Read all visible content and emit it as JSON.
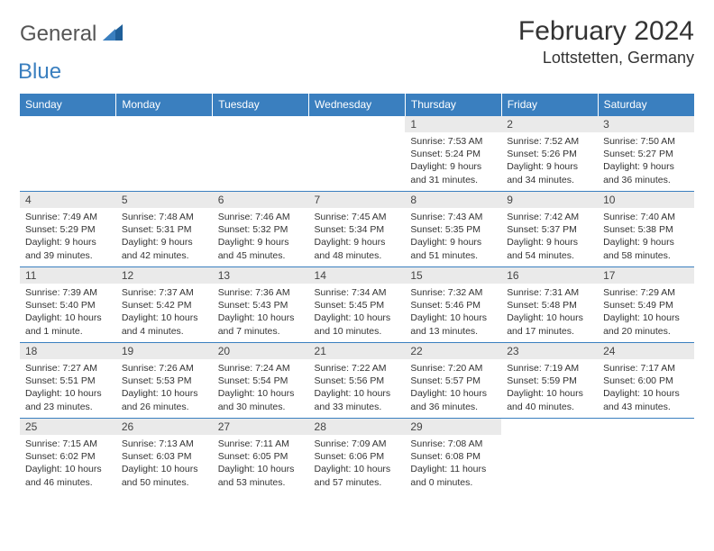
{
  "logo": {
    "text1": "General",
    "text2": "Blue"
  },
  "title": "February 2024",
  "location": "Lottstetten, Germany",
  "colors": {
    "header_bg": "#3a7fbf",
    "header_text": "#ffffff",
    "daynum_bg": "#eaeaea",
    "cell_border": "#3a7fbf",
    "body_text": "#333333",
    "page_bg": "#ffffff"
  },
  "weekdays": [
    "Sunday",
    "Monday",
    "Tuesday",
    "Wednesday",
    "Thursday",
    "Friday",
    "Saturday"
  ],
  "weeks": [
    [
      null,
      null,
      null,
      null,
      {
        "n": "1",
        "sr": "Sunrise: 7:53 AM",
        "ss": "Sunset: 5:24 PM",
        "dl": "Daylight: 9 hours and 31 minutes."
      },
      {
        "n": "2",
        "sr": "Sunrise: 7:52 AM",
        "ss": "Sunset: 5:26 PM",
        "dl": "Daylight: 9 hours and 34 minutes."
      },
      {
        "n": "3",
        "sr": "Sunrise: 7:50 AM",
        "ss": "Sunset: 5:27 PM",
        "dl": "Daylight: 9 hours and 36 minutes."
      }
    ],
    [
      {
        "n": "4",
        "sr": "Sunrise: 7:49 AM",
        "ss": "Sunset: 5:29 PM",
        "dl": "Daylight: 9 hours and 39 minutes."
      },
      {
        "n": "5",
        "sr": "Sunrise: 7:48 AM",
        "ss": "Sunset: 5:31 PM",
        "dl": "Daylight: 9 hours and 42 minutes."
      },
      {
        "n": "6",
        "sr": "Sunrise: 7:46 AM",
        "ss": "Sunset: 5:32 PM",
        "dl": "Daylight: 9 hours and 45 minutes."
      },
      {
        "n": "7",
        "sr": "Sunrise: 7:45 AM",
        "ss": "Sunset: 5:34 PM",
        "dl": "Daylight: 9 hours and 48 minutes."
      },
      {
        "n": "8",
        "sr": "Sunrise: 7:43 AM",
        "ss": "Sunset: 5:35 PM",
        "dl": "Daylight: 9 hours and 51 minutes."
      },
      {
        "n": "9",
        "sr": "Sunrise: 7:42 AM",
        "ss": "Sunset: 5:37 PM",
        "dl": "Daylight: 9 hours and 54 minutes."
      },
      {
        "n": "10",
        "sr": "Sunrise: 7:40 AM",
        "ss": "Sunset: 5:38 PM",
        "dl": "Daylight: 9 hours and 58 minutes."
      }
    ],
    [
      {
        "n": "11",
        "sr": "Sunrise: 7:39 AM",
        "ss": "Sunset: 5:40 PM",
        "dl": "Daylight: 10 hours and 1 minute."
      },
      {
        "n": "12",
        "sr": "Sunrise: 7:37 AM",
        "ss": "Sunset: 5:42 PM",
        "dl": "Daylight: 10 hours and 4 minutes."
      },
      {
        "n": "13",
        "sr": "Sunrise: 7:36 AM",
        "ss": "Sunset: 5:43 PM",
        "dl": "Daylight: 10 hours and 7 minutes."
      },
      {
        "n": "14",
        "sr": "Sunrise: 7:34 AM",
        "ss": "Sunset: 5:45 PM",
        "dl": "Daylight: 10 hours and 10 minutes."
      },
      {
        "n": "15",
        "sr": "Sunrise: 7:32 AM",
        "ss": "Sunset: 5:46 PM",
        "dl": "Daylight: 10 hours and 13 minutes."
      },
      {
        "n": "16",
        "sr": "Sunrise: 7:31 AM",
        "ss": "Sunset: 5:48 PM",
        "dl": "Daylight: 10 hours and 17 minutes."
      },
      {
        "n": "17",
        "sr": "Sunrise: 7:29 AM",
        "ss": "Sunset: 5:49 PM",
        "dl": "Daylight: 10 hours and 20 minutes."
      }
    ],
    [
      {
        "n": "18",
        "sr": "Sunrise: 7:27 AM",
        "ss": "Sunset: 5:51 PM",
        "dl": "Daylight: 10 hours and 23 minutes."
      },
      {
        "n": "19",
        "sr": "Sunrise: 7:26 AM",
        "ss": "Sunset: 5:53 PM",
        "dl": "Daylight: 10 hours and 26 minutes."
      },
      {
        "n": "20",
        "sr": "Sunrise: 7:24 AM",
        "ss": "Sunset: 5:54 PM",
        "dl": "Daylight: 10 hours and 30 minutes."
      },
      {
        "n": "21",
        "sr": "Sunrise: 7:22 AM",
        "ss": "Sunset: 5:56 PM",
        "dl": "Daylight: 10 hours and 33 minutes."
      },
      {
        "n": "22",
        "sr": "Sunrise: 7:20 AM",
        "ss": "Sunset: 5:57 PM",
        "dl": "Daylight: 10 hours and 36 minutes."
      },
      {
        "n": "23",
        "sr": "Sunrise: 7:19 AM",
        "ss": "Sunset: 5:59 PM",
        "dl": "Daylight: 10 hours and 40 minutes."
      },
      {
        "n": "24",
        "sr": "Sunrise: 7:17 AM",
        "ss": "Sunset: 6:00 PM",
        "dl": "Daylight: 10 hours and 43 minutes."
      }
    ],
    [
      {
        "n": "25",
        "sr": "Sunrise: 7:15 AM",
        "ss": "Sunset: 6:02 PM",
        "dl": "Daylight: 10 hours and 46 minutes."
      },
      {
        "n": "26",
        "sr": "Sunrise: 7:13 AM",
        "ss": "Sunset: 6:03 PM",
        "dl": "Daylight: 10 hours and 50 minutes."
      },
      {
        "n": "27",
        "sr": "Sunrise: 7:11 AM",
        "ss": "Sunset: 6:05 PM",
        "dl": "Daylight: 10 hours and 53 minutes."
      },
      {
        "n": "28",
        "sr": "Sunrise: 7:09 AM",
        "ss": "Sunset: 6:06 PM",
        "dl": "Daylight: 10 hours and 57 minutes."
      },
      {
        "n": "29",
        "sr": "Sunrise: 7:08 AM",
        "ss": "Sunset: 6:08 PM",
        "dl": "Daylight: 11 hours and 0 minutes."
      },
      null,
      null
    ]
  ]
}
